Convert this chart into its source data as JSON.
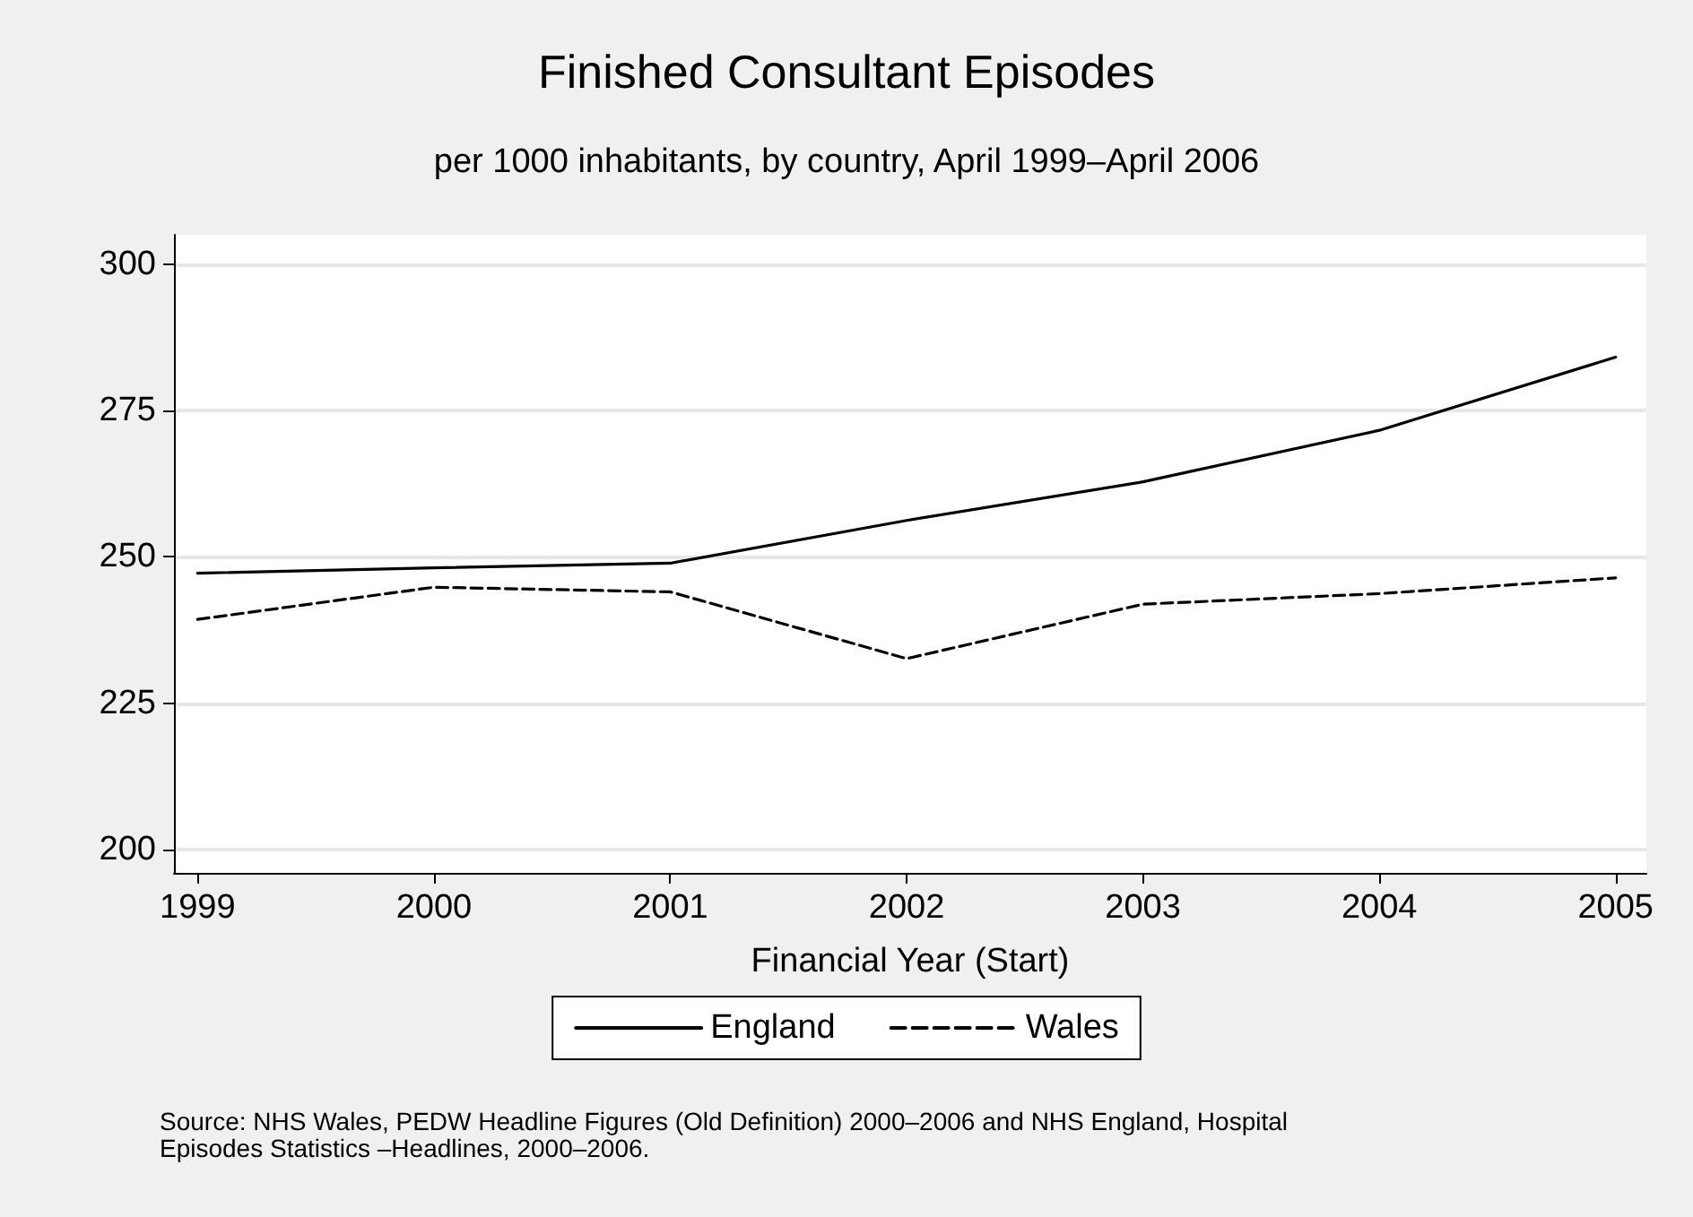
{
  "chart_data": {
    "type": "line",
    "title": "Finished Consultant Episodes",
    "subtitle": "per 1000 inhabitants, by country, April 1999–April 2006",
    "xlabel": "Financial Year (Start)",
    "x": [
      1999,
      2000,
      2001,
      2002,
      2003,
      2004,
      2005
    ],
    "series": [
      {
        "name": "England",
        "color": "#000000",
        "line_style": "solid",
        "values": [
          247.2,
          248.1,
          248.9,
          256.2,
          262.8,
          271.6,
          284.1
        ]
      },
      {
        "name": "Wales",
        "color": "#000000",
        "line_style": "dashed",
        "values": [
          239.3,
          244.8,
          244.0,
          232.6,
          241.9,
          243.7,
          246.4
        ]
      }
    ],
    "xlim": [
      1998.9,
      2005.13
    ],
    "xticks": [
      1999,
      2000,
      2001,
      2002,
      2003,
      2004,
      2005
    ],
    "ylim": [
      196,
      305
    ],
    "yticks": [
      200,
      225,
      250,
      275,
      300
    ],
    "grid": "y",
    "legend": "bottom",
    "marker": "none",
    "annotations": [
      "Source: NHS Wales, PEDW Headline Figures (Old Definition) 2000–2006 and NHS England, Hospital Episodes Statistics –Headlines, 2000–2006."
    ]
  }
}
